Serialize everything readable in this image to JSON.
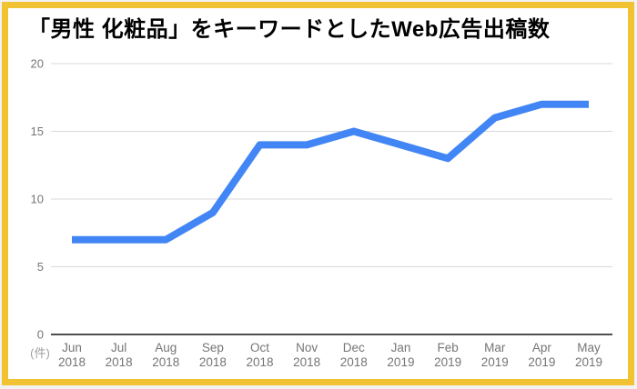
{
  "colors": {
    "page_background": "#f2f2f2",
    "card_background": "#ffffff",
    "border": "#f1c232",
    "line": "#4285f4",
    "grid": "#d9d9d9",
    "axis": "#4f4f4f",
    "tick_label": "#757575",
    "unit_label": "#9e9e9e",
    "title": "#000000"
  },
  "chart_data": {
    "type": "line",
    "title": "「男性 化粧品」をキーワードとしたWeb広告出稿数",
    "unit_label": "(件)",
    "categories": [
      {
        "month": "Jun",
        "year": "2018"
      },
      {
        "month": "Jul",
        "year": "2018"
      },
      {
        "month": "Aug",
        "year": "2018"
      },
      {
        "month": "Sep",
        "year": "2018"
      },
      {
        "month": "Oct",
        "year": "2018"
      },
      {
        "month": "Nov",
        "year": "2018"
      },
      {
        "month": "Dec",
        "year": "2018"
      },
      {
        "month": "Jan",
        "year": "2019"
      },
      {
        "month": "Feb",
        "year": "2019"
      },
      {
        "month": "Mar",
        "year": "2019"
      },
      {
        "month": "Apr",
        "year": "2019"
      },
      {
        "month": "May",
        "year": "2019"
      }
    ],
    "values": [
      7,
      7,
      7,
      9,
      14,
      14,
      15,
      14,
      13,
      16,
      17,
      17
    ],
    "ylim": [
      0,
      20
    ],
    "yticks": [
      0,
      5,
      10,
      15,
      20
    ],
    "xlabel": "",
    "ylabel": "",
    "grid": true,
    "legend_position": "none",
    "line_width": 8
  }
}
